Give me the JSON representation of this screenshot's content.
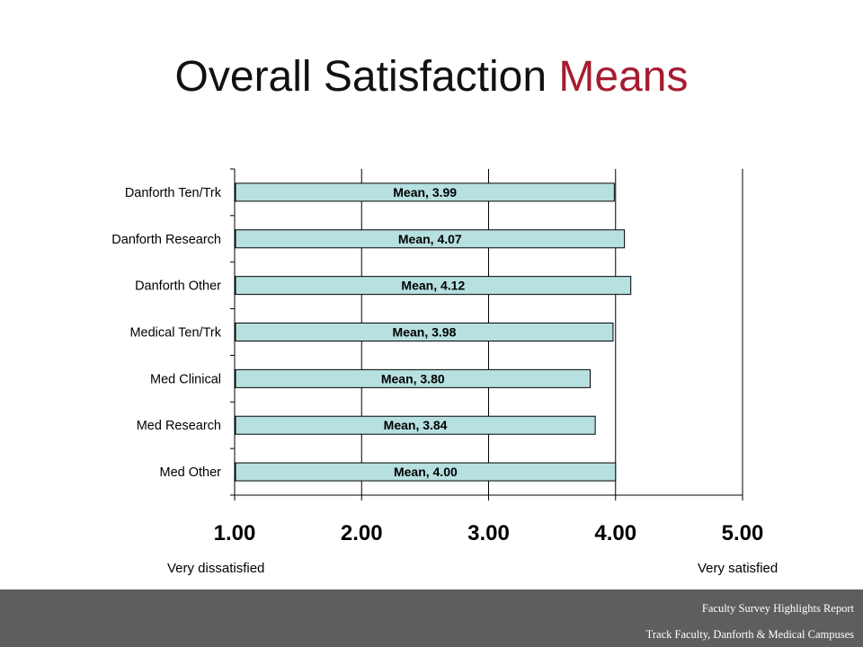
{
  "slide": {
    "title_main": "Overall Satisfaction",
    "title_accent": "Means",
    "accent_color": "#a51c30"
  },
  "chart_data": {
    "type": "bar",
    "orientation": "horizontal",
    "categories": [
      "Danforth Ten/Trk",
      "Danforth Research",
      "Danforth Other",
      "Medical Ten/Trk",
      "Med Clinical",
      "Med Research",
      "Med Other"
    ],
    "values": [
      3.99,
      4.07,
      4.12,
      3.98,
      3.8,
      3.84,
      4.0
    ],
    "data_labels": [
      "Mean, 3.99",
      "Mean, 4.07",
      "Mean, 4.12",
      "Mean, 3.98",
      "Mean, 3.80",
      "Mean, 3.84",
      "Mean, 4.00"
    ],
    "xlim": [
      1,
      5
    ],
    "xticks": [
      "1.00",
      "2.00",
      "3.00",
      "4.00",
      "5.00"
    ],
    "grid": "vertical",
    "bar_color": "#b7e0e0",
    "bar_edge_color": "#000000"
  },
  "scale_labels": {
    "low": "Very dissatisfied",
    "high": "Very satisfied"
  },
  "footer": {
    "line1": "Faculty Survey Highlights Report",
    "line2": "Track Faculty, Danforth & Medical Campuses"
  }
}
